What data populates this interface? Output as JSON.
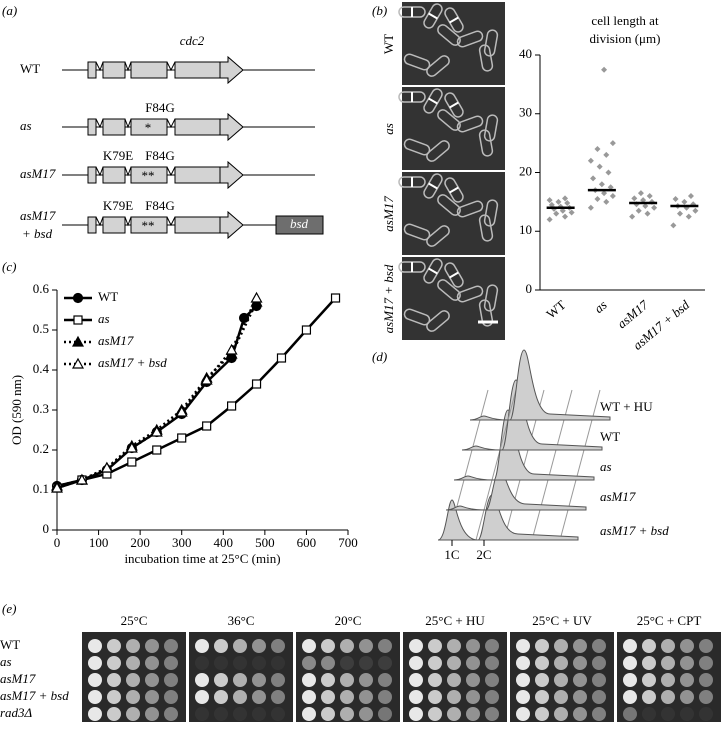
{
  "panels": {
    "a": "(a)",
    "b": "(b)",
    "c": "(c)",
    "d": "(d)",
    "e": "(e)"
  },
  "diagram": {
    "gene": "cdc2",
    "strains": [
      {
        "label": "WT",
        "mutations": []
      },
      {
        "label": "as",
        "mutations": [
          "F84G"
        ],
        "marker": "*"
      },
      {
        "label": "asM17",
        "mutations": [
          "K79E",
          "F84G"
        ],
        "marker": "**"
      },
      {
        "label": "asM17\n+ bsd",
        "mutations": [
          "K79E",
          "F84G"
        ],
        "marker": "**",
        "cassette": "bsd"
      }
    ]
  },
  "micrographs": [
    "WT",
    "as",
    "asM17",
    "asM17 + bsd"
  ],
  "chart_data": [
    {
      "type": "strip",
      "title": "cell length at division (μm)",
      "categories": [
        "WT",
        "as",
        "asM17",
        "asM17 + bsd"
      ],
      "values": [
        14,
        17,
        14.8,
        14.3
      ],
      "points": [
        [
          12,
          12.5,
          13,
          13.2,
          13.5,
          13.8,
          14,
          14.2,
          14.5,
          14.8,
          15,
          15.3,
          15.6
        ],
        [
          14,
          15,
          15.5,
          16,
          16.5,
          17,
          17.5,
          18,
          19,
          20,
          21,
          22,
          23,
          24,
          25,
          37.5
        ],
        [
          12.5,
          13,
          13.5,
          14,
          14.3,
          14.6,
          15,
          15.3,
          15.6,
          16,
          16.5
        ],
        [
          11,
          12.5,
          13,
          13.5,
          14,
          14.3,
          14.6,
          15,
          15.5,
          16
        ]
      ],
      "color": "#999999",
      "ylim": [
        0,
        40
      ],
      "yticks": [
        0,
        10,
        20,
        30,
        40
      ]
    },
    {
      "type": "line",
      "xlabel": "incubation time at 25°C (min)",
      "ylabel": "OD (590 nm)",
      "xlim": [
        0,
        700
      ],
      "xticks": [
        0,
        100,
        200,
        300,
        400,
        500,
        600,
        700
      ],
      "ylim": [
        0,
        0.6
      ],
      "yticks": [
        0,
        0.1,
        0.2,
        0.3,
        0.4,
        0.5,
        0.6
      ],
      "legend": "upper left",
      "series": [
        {
          "name": "WT",
          "marker": "circle",
          "fill": "#000000",
          "dash": false,
          "x": [
            0,
            60,
            120,
            180,
            240,
            300,
            360,
            420,
            450,
            480
          ],
          "values": [
            0.11,
            0.125,
            0.15,
            0.205,
            0.245,
            0.29,
            0.37,
            0.43,
            0.53,
            0.56
          ]
        },
        {
          "name": "as",
          "marker": "square",
          "fill": "#ffffff",
          "dash": false,
          "x": [
            0,
            60,
            120,
            180,
            240,
            300,
            360,
            420,
            480,
            540,
            600,
            670
          ],
          "values": [
            0.105,
            0.125,
            0.14,
            0.17,
            0.2,
            0.23,
            0.26,
            0.31,
            0.365,
            0.43,
            0.5,
            0.58
          ]
        },
        {
          "name": "asM17",
          "marker": "triangle",
          "fill": "#000000",
          "dash": true,
          "x": [
            0,
            60,
            120,
            180,
            240,
            300,
            360,
            420,
            480
          ],
          "values": [
            0.11,
            0.125,
            0.155,
            0.21,
            0.25,
            0.3,
            0.38,
            0.44,
            0.57
          ]
        },
        {
          "name": "asM17 + bsd",
          "marker": "triangle",
          "fill": "#ffffff",
          "dash": true,
          "x": [
            0,
            60,
            120,
            180,
            240,
            300,
            360,
            420,
            480
          ],
          "values": [
            0.105,
            0.125,
            0.155,
            0.205,
            0.245,
            0.295,
            0.375,
            0.45,
            0.58
          ]
        }
      ]
    }
  ],
  "histograms": {
    "rows": [
      "asM17 + bsd",
      "asM17",
      "as",
      "WT",
      "WT + HU"
    ],
    "xticks": [
      "1C",
      "2C"
    ]
  },
  "spots": {
    "conditions": [
      "25°C",
      "36°C",
      "20°C",
      "25°C + HU",
      "25°C + UV",
      "25°C + CPT"
    ],
    "strains": [
      "WT",
      "as",
      "asM17",
      "asM17 + bsd",
      "rad3Δ"
    ]
  }
}
